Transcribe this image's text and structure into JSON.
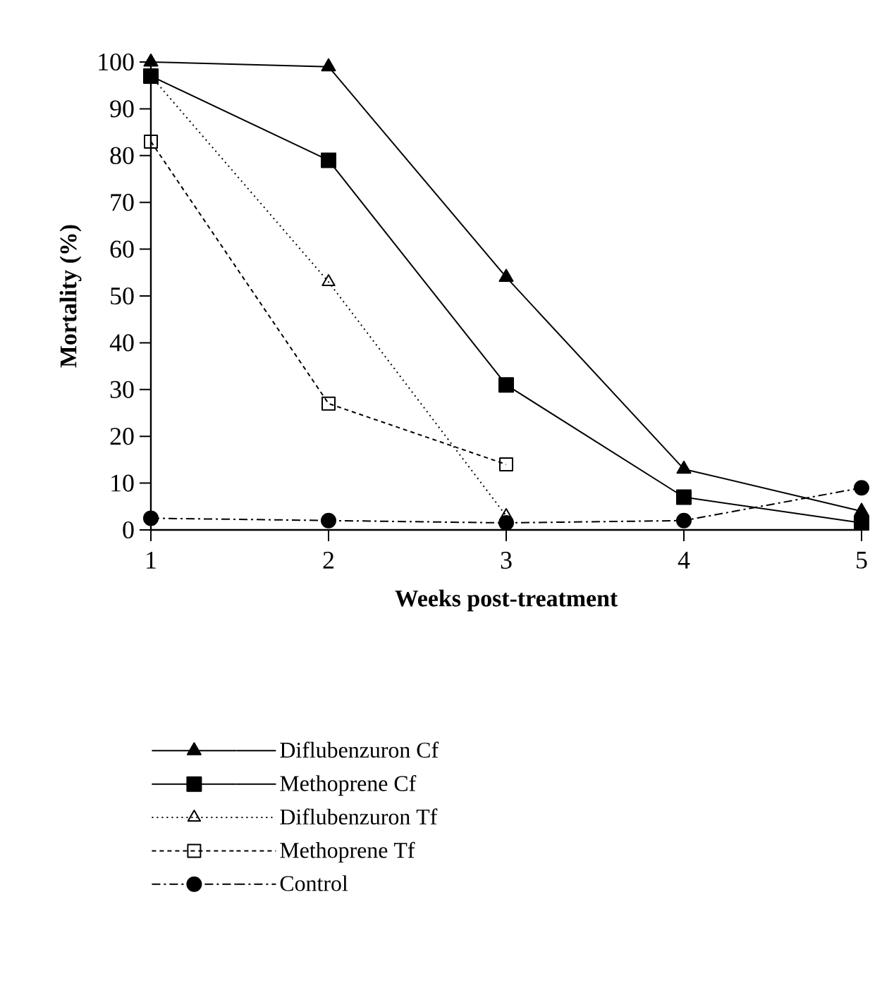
{
  "chart_data": {
    "type": "line",
    "xlabel": "Weeks post-treatment",
    "ylabel": "Mortality (%)",
    "x": [
      1,
      2,
      3,
      4,
      5
    ],
    "xlim": [
      1,
      5
    ],
    "xticks": [
      1,
      2,
      3,
      4,
      5
    ],
    "ylim": [
      0,
      100
    ],
    "yticks": [
      0,
      10,
      20,
      30,
      40,
      50,
      60,
      70,
      80,
      90,
      100
    ],
    "legend": "bottom",
    "series": [
      {
        "name": "Diflubenzuron Cf",
        "color": "#000000",
        "marker": "triangle",
        "line_style": "solid",
        "values": [
          100,
          99,
          54,
          13,
          4
        ]
      },
      {
        "name": "Methoprene Cf",
        "color": "#000000",
        "marker": "square",
        "line_style": "solid",
        "values": [
          97,
          79,
          31,
          7,
          1.5
        ]
      },
      {
        "name": "Diflubenzuron Tf",
        "color": "#000000",
        "marker": "triangle-open",
        "line_style": "dotted",
        "values": [
          97,
          53,
          3,
          null,
          null
        ]
      },
      {
        "name": "Methoprene Tf",
        "color": "#000000",
        "marker": "square-open",
        "line_style": "dashed",
        "values": [
          83,
          27,
          14,
          null,
          null
        ]
      },
      {
        "name": "Control",
        "color": "#000000",
        "marker": "circle",
        "line_style": "dashdot",
        "values": [
          2.5,
          2,
          1.5,
          2,
          9
        ]
      }
    ]
  }
}
